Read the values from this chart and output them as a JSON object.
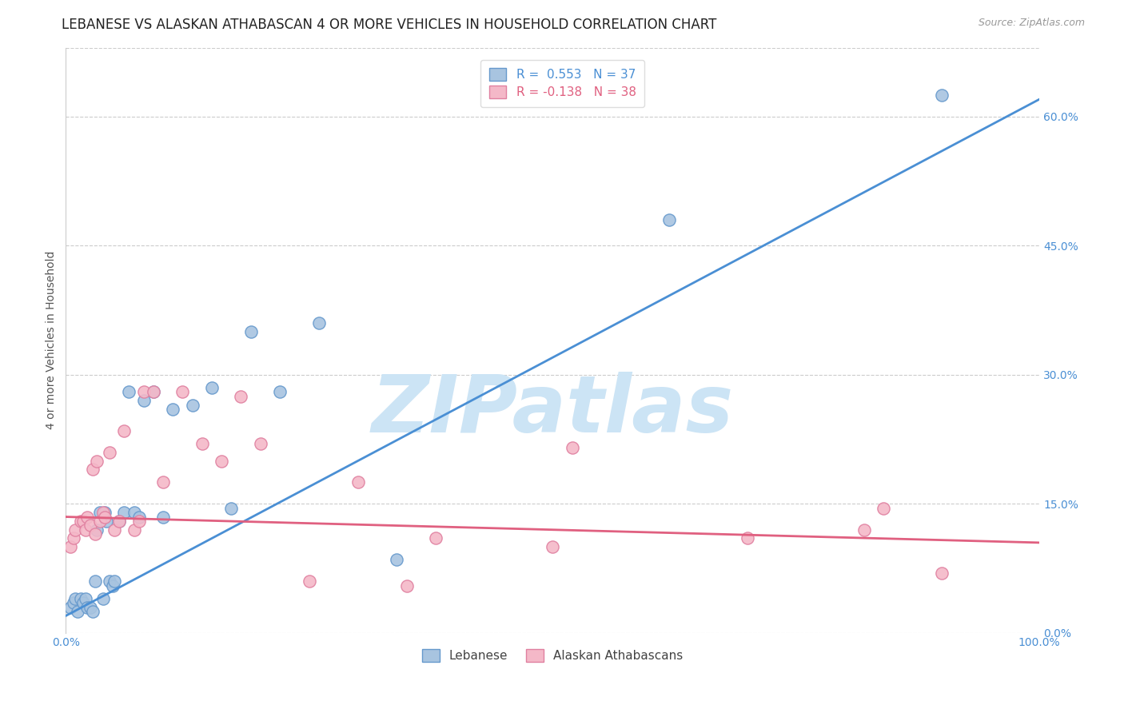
{
  "title": "LEBANESE VS ALASKAN ATHABASCAN 4 OR MORE VEHICLES IN HOUSEHOLD CORRELATION CHART",
  "source": "Source: ZipAtlas.com",
  "ylabel": "4 or more Vehicles in Household",
  "ytick_vals": [
    0.0,
    0.15,
    0.3,
    0.45,
    0.6
  ],
  "ytick_labels": [
    "0.0%",
    "15.0%",
    "30.0%",
    "45.0%",
    "60.0%"
  ],
  "xtick_vals": [
    0.0,
    0.2,
    0.4,
    0.6,
    0.8,
    1.0
  ],
  "xtick_labels": [
    "0.0%",
    "",
    "",
    "",
    "",
    "100.0%"
  ],
  "legend_entries": [
    {
      "label": "Lebanese",
      "color": "#a8c4e0",
      "edge": "#6699cc",
      "R": "0.553",
      "N": "37"
    },
    {
      "label": "Alaskan Athabascans",
      "color": "#f4b8c8",
      "edge": "#e080a0",
      "R": "-0.138",
      "N": "38"
    }
  ],
  "blue_scatter_x": [
    0.005,
    0.008,
    0.01,
    0.012,
    0.015,
    0.018,
    0.02,
    0.022,
    0.025,
    0.028,
    0.03,
    0.032,
    0.035,
    0.038,
    0.04,
    0.042,
    0.045,
    0.048,
    0.05,
    0.055,
    0.06,
    0.065,
    0.07,
    0.075,
    0.08,
    0.09,
    0.1,
    0.11,
    0.13,
    0.15,
    0.17,
    0.19,
    0.22,
    0.26,
    0.34,
    0.62,
    0.9
  ],
  "blue_scatter_y": [
    0.03,
    0.035,
    0.04,
    0.025,
    0.04,
    0.035,
    0.04,
    0.03,
    0.03,
    0.025,
    0.06,
    0.12,
    0.14,
    0.04,
    0.14,
    0.13,
    0.06,
    0.055,
    0.06,
    0.13,
    0.14,
    0.28,
    0.14,
    0.135,
    0.27,
    0.28,
    0.135,
    0.26,
    0.265,
    0.285,
    0.145,
    0.35,
    0.28,
    0.36,
    0.085,
    0.48,
    0.625
  ],
  "pink_scatter_x": [
    0.005,
    0.008,
    0.01,
    0.015,
    0.018,
    0.02,
    0.022,
    0.025,
    0.028,
    0.03,
    0.032,
    0.035,
    0.038,
    0.04,
    0.045,
    0.05,
    0.055,
    0.06,
    0.07,
    0.075,
    0.08,
    0.09,
    0.1,
    0.12,
    0.14,
    0.16,
    0.18,
    0.2,
    0.25,
    0.3,
    0.35,
    0.38,
    0.5,
    0.52,
    0.7,
    0.82,
    0.84,
    0.9
  ],
  "pink_scatter_y": [
    0.1,
    0.11,
    0.12,
    0.13,
    0.13,
    0.12,
    0.135,
    0.125,
    0.19,
    0.115,
    0.2,
    0.13,
    0.14,
    0.135,
    0.21,
    0.12,
    0.13,
    0.235,
    0.12,
    0.13,
    0.28,
    0.28,
    0.175,
    0.28,
    0.22,
    0.2,
    0.275,
    0.22,
    0.06,
    0.175,
    0.055,
    0.11,
    0.1,
    0.215,
    0.11,
    0.12,
    0.145,
    0.07
  ],
  "blue_line_x": [
    0.0,
    1.0
  ],
  "blue_line_y": [
    0.02,
    0.62
  ],
  "pink_line_x": [
    0.0,
    1.0
  ],
  "pink_line_y": [
    0.135,
    0.105
  ],
  "blue_line_color": "#4a8fd4",
  "pink_line_color": "#e06080",
  "blue_dot_color": "#a8c4e0",
  "pink_dot_color": "#f4b8c8",
  "dot_edge_blue": "#6699cc",
  "dot_edge_pink": "#e080a0",
  "watermark": "ZIPatlas",
  "watermark_color": "#cce4f5",
  "background_color": "#ffffff",
  "title_fontsize": 12,
  "axis_label_fontsize": 10,
  "tick_fontsize": 10,
  "legend_fontsize": 11,
  "source_fontsize": 9,
  "ylim": [
    0.0,
    0.68
  ],
  "xlim": [
    0.0,
    1.0
  ]
}
